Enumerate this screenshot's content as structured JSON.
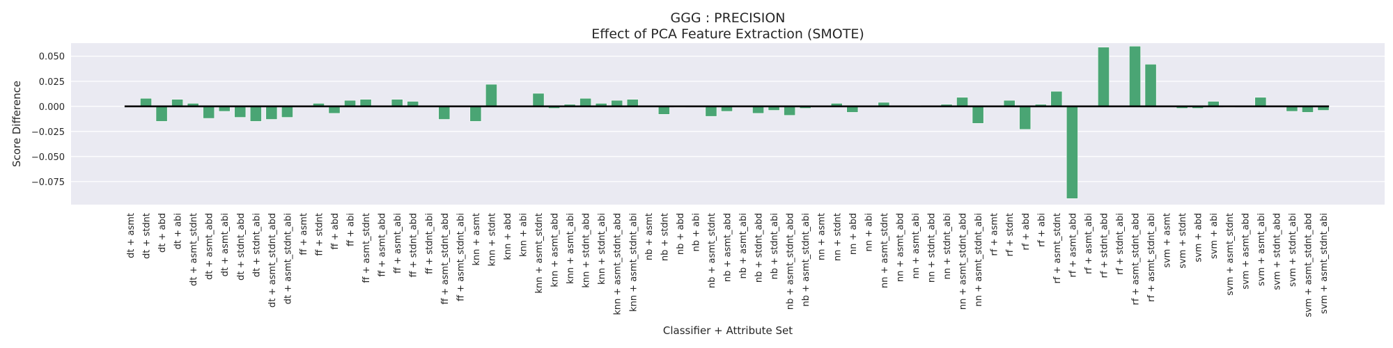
{
  "chart_data": {
    "type": "bar",
    "title": "GGG : PRECISION",
    "subtitle": "Effect of PCA Feature Extraction (SMOTE)",
    "xlabel": "Classifier + Attribute Set",
    "ylabel": "Score Difference",
    "ylim": [
      -0.098,
      0.063
    ],
    "yticks": [
      0.05,
      0.025,
      0.0,
      -0.025,
      -0.05,
      -0.075
    ],
    "ytick_labels": [
      "0.050",
      "0.025",
      "0.000",
      "−0.025",
      "−0.050",
      "−0.075"
    ],
    "grid": true,
    "colors": {
      "bar": "#4aa574",
      "background": "#eaeaf2",
      "grid": "#ffffff",
      "zero_line": "#000000"
    },
    "categories": [
      "dt + asmt",
      "dt + stdnt",
      "dt + abd",
      "dt + abi",
      "dt + asmt_stdnt",
      "dt + asmt_abd",
      "dt + asmt_abi",
      "dt + stdnt_abd",
      "dt + stdnt_abi",
      "dt + asmt_stdnt_abd",
      "dt + asmt_stdnt_abi",
      "ff + asmt",
      "ff + stdnt",
      "ff + abd",
      "ff + abi",
      "ff + asmt_stdnt",
      "ff + asmt_abd",
      "ff + asmt_abi",
      "ff + stdnt_abd",
      "ff + stdnt_abi",
      "ff + asmt_stdnt_abd",
      "ff + asmt_stdnt_abi",
      "knn + asmt",
      "knn + stdnt",
      "knn + abd",
      "knn + abi",
      "knn + asmt_stdnt",
      "knn + asmt_abd",
      "knn + asmt_abi",
      "knn + stdnt_abd",
      "knn + stdnt_abi",
      "knn + asmt_stdnt_abd",
      "knn + asmt_stdnt_abi",
      "nb + asmt",
      "nb + stdnt",
      "nb + abd",
      "nb + abi",
      "nb + asmt_stdnt",
      "nb + asmt_abd",
      "nb + asmt_abi",
      "nb + stdnt_abd",
      "nb + stdnt_abi",
      "nb + asmt_stdnt_abd",
      "nb + asmt_stdnt_abi",
      "nn + asmt",
      "nn + stdnt",
      "nn + abd",
      "nn + abi",
      "nn + asmt_stdnt",
      "nn + asmt_abd",
      "nn + asmt_abi",
      "nn + stdnt_abd",
      "nn + stdnt_abi",
      "nn + asmt_stdnt_abd",
      "nn + asmt_stdnt_abi",
      "rf + asmt",
      "rf + stdnt",
      "rf + abd",
      "rf + abi",
      "rf + asmt_stdnt",
      "rf + asmt_abd",
      "rf + asmt_abi",
      "rf + stdnt_abd",
      "rf + stdnt_abi",
      "rf + asmt_stdnt_abd",
      "rf + asmt_stdnt_abi",
      "svm + asmt",
      "svm + stdnt",
      "svm + abd",
      "svm + abi",
      "svm + asmt_stdnt",
      "svm + asmt_abd",
      "svm + asmt_abi",
      "svm + stdnt_abd",
      "svm + stdnt_abi",
      "svm + asmt_stdnt_abd",
      "svm + asmt_stdnt_abi"
    ],
    "values": [
      0.0,
      0.008,
      -0.015,
      0.007,
      0.003,
      -0.012,
      -0.005,
      -0.011,
      -0.015,
      -0.013,
      -0.011,
      0.0,
      0.003,
      -0.007,
      0.006,
      0.007,
      0.0,
      0.007,
      0.005,
      0.0,
      -0.013,
      0.0,
      -0.015,
      0.022,
      0.0,
      0.0,
      0.013,
      -0.002,
      0.002,
      0.008,
      0.003,
      0.006,
      0.007,
      0.0,
      -0.008,
      -0.001,
      0.0,
      -0.01,
      -0.005,
      0.0,
      -0.007,
      -0.004,
      -0.009,
      -0.002,
      0.0,
      0.003,
      -0.006,
      0.0,
      0.004,
      0.0,
      0.001,
      0.0,
      0.002,
      0.009,
      -0.017,
      0.0,
      0.006,
      -0.023,
      0.002,
      0.015,
      -0.092,
      0.0,
      0.059,
      0.0,
      0.06,
      0.042,
      0.0,
      -0.002,
      -0.002,
      0.005,
      -0.001,
      0.0,
      0.009,
      0.0,
      -0.005,
      -0.006,
      -0.004
    ]
  }
}
